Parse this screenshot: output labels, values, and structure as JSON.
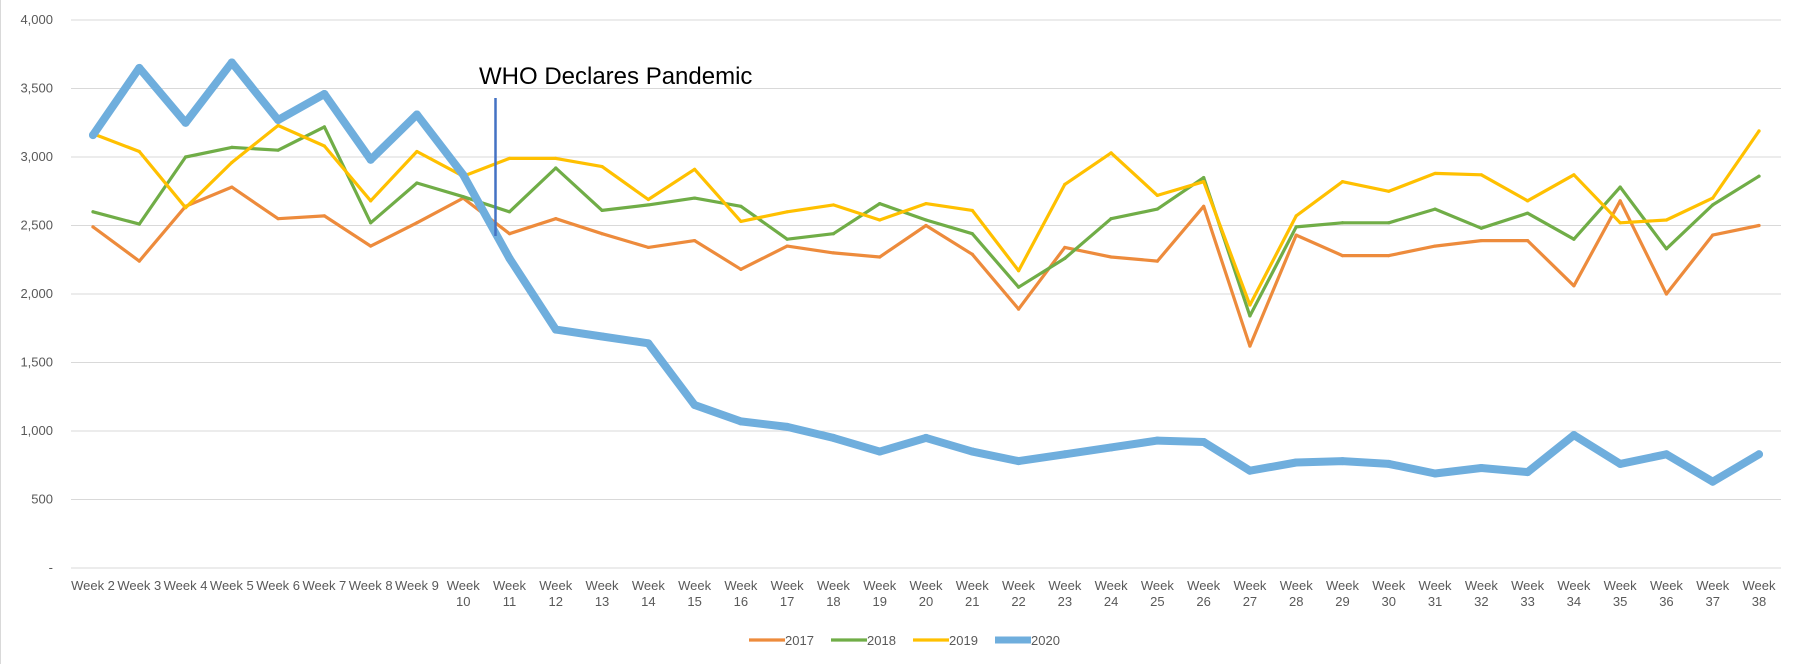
{
  "chart_data": {
    "type": "line",
    "title": "",
    "xlabel": "",
    "ylabel": "",
    "ylim": [
      0,
      4000
    ],
    "ytick_labels": [
      "-",
      "500",
      "1,000",
      "1,500",
      "2,000",
      "2,500",
      "3,000",
      "3,500",
      "4,000"
    ],
    "ytick_values": [
      0,
      500,
      1000,
      1500,
      2000,
      2500,
      3000,
      3500,
      4000
    ],
    "grid": true,
    "legend_position": "bottom",
    "categories": [
      "Week 2",
      "Week 3",
      "Week 4",
      "Week 5",
      "Week 6",
      "Week 7",
      "Week 8",
      "Week 9",
      "Week 10",
      "Week 11",
      "Week 12",
      "Week 13",
      "Week 14",
      "Week 15",
      "Week 16",
      "Week 17",
      "Week 18",
      "Week 19",
      "Week 20",
      "Week 21",
      "Week 22",
      "Week 23",
      "Week 24",
      "Week 25",
      "Week 26",
      "Week 27",
      "Week 28",
      "Week 29",
      "Week 30",
      "Week 31",
      "Week 32",
      "Week 33",
      "Week 34",
      "Week 35",
      "Week 36",
      "Week 37",
      "Week 38"
    ],
    "series": [
      {
        "name": "2017",
        "color": "#ED8B3C",
        "values": [
          2490,
          2240,
          2640,
          2780,
          2550,
          2570,
          2350,
          2520,
          2700,
          2440,
          2550,
          2440,
          2340,
          2390,
          2180,
          2350,
          2300,
          2270,
          2500,
          2290,
          1890,
          2340,
          2270,
          2240,
          2640,
          1620,
          2430,
          2280,
          2280,
          2350,
          2390,
          2390,
          2060,
          2680,
          2000,
          2430,
          2500
        ]
      },
      {
        "name": "2018",
        "color": "#70AD47",
        "values": [
          2600,
          2510,
          3000,
          3070,
          3050,
          3220,
          2520,
          2810,
          2710,
          2600,
          2920,
          2610,
          2650,
          2700,
          2640,
          2400,
          2440,
          2660,
          2540,
          2440,
          2050,
          2260,
          2550,
          2620,
          2850,
          1840,
          2490,
          2520,
          2520,
          2620,
          2480,
          2590,
          2400,
          2780,
          2330,
          2650,
          2860
        ]
      },
      {
        "name": "2019",
        "color": "#FFC000",
        "values": [
          3170,
          3040,
          2630,
          2960,
          3230,
          3080,
          2680,
          3040,
          2860,
          2990,
          2990,
          2930,
          2690,
          2910,
          2530,
          2600,
          2650,
          2540,
          2660,
          2610,
          2170,
          2800,
          3030,
          2720,
          2820,
          1920,
          2570,
          2820,
          2750,
          2880,
          2870,
          2680,
          2870,
          2520,
          2540,
          2700,
          3190
        ]
      },
      {
        "name": "2020",
        "color": "#6FAEDD",
        "values": [
          3160,
          3650,
          3250,
          3690,
          3270,
          3460,
          2980,
          3310,
          2870,
          2260,
          1740,
          1690,
          1640,
          1190,
          1070,
          1030,
          950,
          850,
          950,
          850,
          780,
          830,
          880,
          930,
          920,
          710,
          770,
          780,
          760,
          690,
          730,
          700,
          970,
          760,
          830,
          630,
          830
        ]
      }
    ],
    "annotations": [
      {
        "text": "WHO Declares Pandemic",
        "at_category": "Week 11"
      }
    ]
  }
}
